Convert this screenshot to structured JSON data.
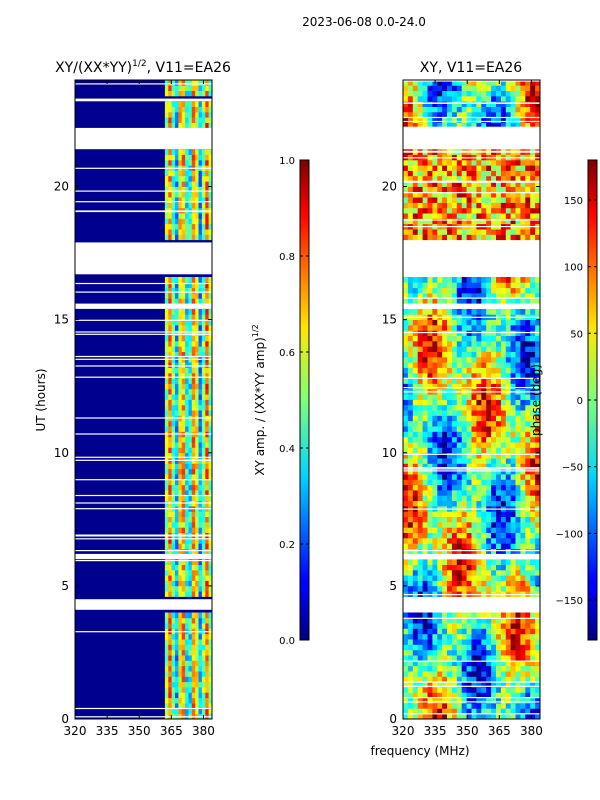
{
  "figure_title": "2023-06-08 0.0-24.0",
  "shared_xlabel": "frequency (MHz)",
  "chart_data": [
    {
      "type": "heatmap",
      "title_main": "XY/(XX*YY)",
      "title_sup": "1/2",
      "title_tail": ", V11=EA26",
      "ylabel": "UT (hours)",
      "xlim": [
        320,
        384
      ],
      "ylim": [
        0,
        24
      ],
      "xticks": [
        320,
        335,
        350,
        365,
        380
      ],
      "yticks": [
        0,
        5,
        10,
        15,
        20
      ],
      "colorbar": {
        "label_main": "XY amp. / (XX*YY amp)",
        "label_sup": "1/2",
        "range": [
          0.0,
          1.0
        ],
        "ticks": [
          "0.0",
          "0.2",
          "0.4",
          "0.6",
          "0.8",
          "1.0"
        ],
        "tick_values": [
          0.0,
          0.2,
          0.4,
          0.6,
          0.8,
          1.0
        ]
      },
      "gaps_hours": [
        [
          4.1,
          4.5
        ],
        [
          16.7,
          17.9
        ],
        [
          21.4,
          22.2
        ],
        [
          23.2,
          23.3
        ],
        [
          15.4,
          15.6
        ],
        [
          6.0,
          6.2
        ]
      ],
      "active_band_mhz": [
        362,
        384
      ]
    },
    {
      "type": "heatmap",
      "title_main": "XY, V11=EA26",
      "ylabel": "",
      "xlim": [
        320,
        384
      ],
      "ylim": [
        0,
        24
      ],
      "xticks": [
        320,
        335,
        350,
        365,
        380
      ],
      "yticks": [
        0,
        5,
        10,
        15,
        20
      ],
      "colorbar": {
        "label_main": "phase (deg)",
        "range": [
          -180,
          180
        ],
        "ticks": [
          "−150",
          "−100",
          "−50",
          "0",
          "50",
          "100",
          "150"
        ],
        "tick_values": [
          -150,
          -100,
          -50,
          0,
          50,
          100,
          150
        ]
      },
      "gaps_hours": [
        [
          4.1,
          4.5
        ],
        [
          16.7,
          17.9
        ],
        [
          21.4,
          22.2
        ],
        [
          15.4,
          15.6
        ],
        [
          6.0,
          6.2
        ]
      ]
    }
  ]
}
